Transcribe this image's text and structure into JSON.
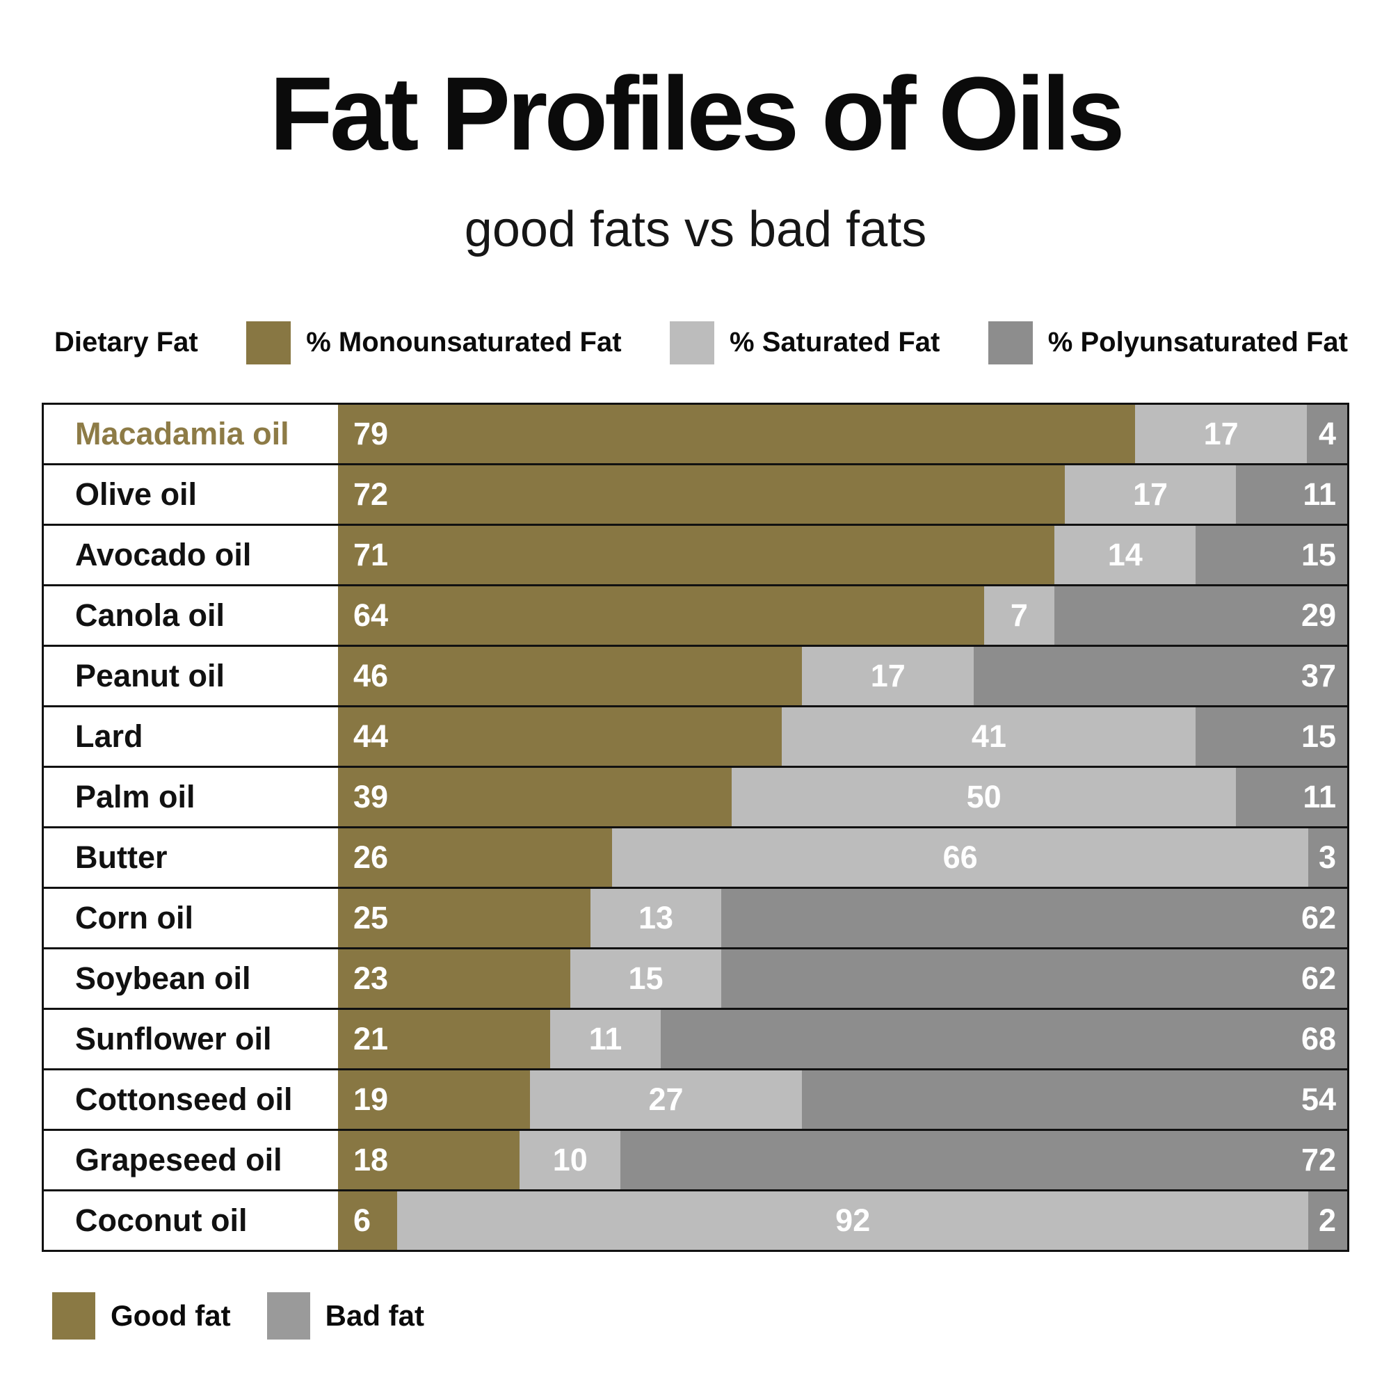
{
  "page": {
    "title": "Fat Profiles of Oils",
    "subtitle": "good fats vs bad fats"
  },
  "header_legend": {
    "title": "Dietary Fat",
    "items": [
      {
        "label": "% Monounsaturated Fat",
        "color": "#887743"
      },
      {
        "label": "% Saturated Fat",
        "color": "#bcbcbc"
      },
      {
        "label": "% Polyunsaturated Fat",
        "color": "#8d8d8d"
      }
    ]
  },
  "footer_legend": {
    "items": [
      {
        "label": "Good fat",
        "color": "#8a7944"
      },
      {
        "label": "Bad fat",
        "color": "#9a9a9a"
      }
    ]
  },
  "colors": {
    "monounsaturated": "#887743",
    "saturated": "#bcbcbc",
    "polyunsaturated": "#8d8d8d",
    "highlight_label": "#8d7b46",
    "label_text": "#111111",
    "value_text": "#ffffff"
  },
  "chart_data": {
    "type": "bar",
    "stacked": true,
    "orientation": "horizontal",
    "value_unit": "percent",
    "xlim": [
      0,
      100
    ],
    "grid": false,
    "legend_position": "top",
    "title": "Fat Profiles of Oils",
    "subtitle": "good fats vs bad fats",
    "highlighted_category": "Macadamia oil",
    "categories": [
      "Macadamia oil",
      "Olive oil",
      "Avocado oil",
      "Canola oil",
      "Peanut oil",
      "Lard",
      "Palm oil",
      "Butter",
      "Corn oil",
      "Soybean oil",
      "Sunflower oil",
      "Cottonseed oil",
      "Grapeseed oil",
      "Coconut oil"
    ],
    "series": [
      {
        "name": "% Monounsaturated Fat",
        "role": "Good fat",
        "color": "#887743",
        "values": [
          79,
          72,
          71,
          64,
          46,
          44,
          39,
          26,
          25,
          23,
          21,
          19,
          18,
          6
        ]
      },
      {
        "name": "% Saturated Fat",
        "role": "Bad fat",
        "color": "#bcbcbc",
        "values": [
          17,
          17,
          14,
          7,
          17,
          41,
          50,
          66,
          13,
          15,
          11,
          27,
          10,
          92
        ]
      },
      {
        "name": "% Polyunsaturated Fat",
        "role": "Bad fat",
        "color": "#8d8d8d",
        "values": [
          4,
          11,
          15,
          29,
          37,
          15,
          11,
          3,
          62,
          62,
          68,
          54,
          72,
          2
        ]
      }
    ],
    "rows": [
      {
        "name": "Macadamia oil",
        "mono": 79,
        "sat": 17,
        "poly": 4,
        "highlighted": true
      },
      {
        "name": "Olive oil",
        "mono": 72,
        "sat": 17,
        "poly": 11,
        "highlighted": false
      },
      {
        "name": "Avocado oil",
        "mono": 71,
        "sat": 14,
        "poly": 15,
        "highlighted": false
      },
      {
        "name": "Canola oil",
        "mono": 64,
        "sat": 7,
        "poly": 29,
        "highlighted": false
      },
      {
        "name": "Peanut oil",
        "mono": 46,
        "sat": 17,
        "poly": 37,
        "highlighted": false
      },
      {
        "name": "Lard",
        "mono": 44,
        "sat": 41,
        "poly": 15,
        "highlighted": false
      },
      {
        "name": "Palm oil",
        "mono": 39,
        "sat": 50,
        "poly": 11,
        "highlighted": false
      },
      {
        "name": "Butter",
        "mono": 26,
        "sat": 66,
        "poly": 3,
        "highlighted": false
      },
      {
        "name": "Corn oil",
        "mono": 25,
        "sat": 13,
        "poly": 62,
        "highlighted": false
      },
      {
        "name": "Soybean oil",
        "mono": 23,
        "sat": 15,
        "poly": 62,
        "highlighted": false
      },
      {
        "name": "Sunflower oil",
        "mono": 21,
        "sat": 11,
        "poly": 68,
        "highlighted": false
      },
      {
        "name": "Cottonseed oil",
        "mono": 19,
        "sat": 27,
        "poly": 54,
        "highlighted": false
      },
      {
        "name": "Grapeseed oil",
        "mono": 18,
        "sat": 10,
        "poly": 72,
        "highlighted": false
      },
      {
        "name": "Coconut oil",
        "mono": 6,
        "sat": 92,
        "poly": 2,
        "highlighted": false
      }
    ]
  }
}
